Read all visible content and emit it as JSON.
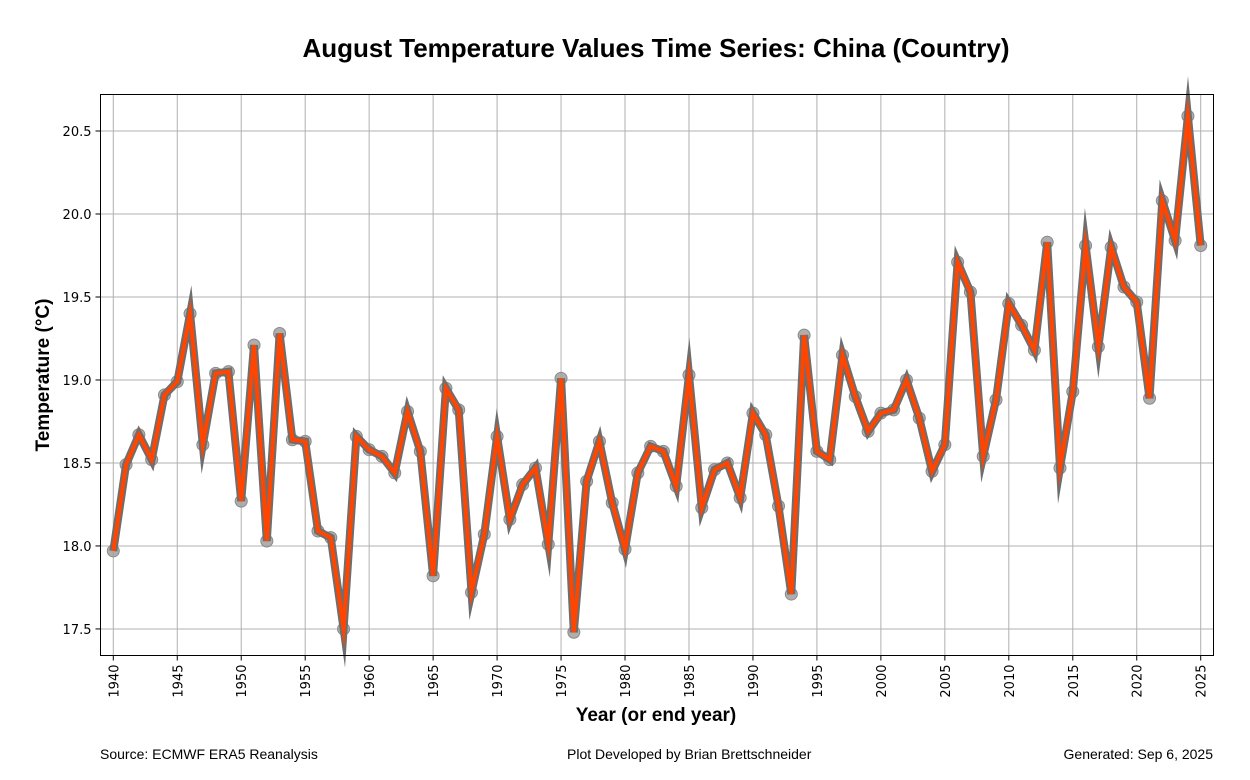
{
  "chart_data": {
    "type": "line",
    "title": "August Temperature Values Time Series: China (Country)",
    "xlabel": "Year (or end year)",
    "ylabel": "Temperature (°C)",
    "xlim": [
      1939,
      2026
    ],
    "ylim": [
      17.34,
      20.72
    ],
    "grid": true,
    "x_ticks": [
      1940,
      1945,
      1950,
      1955,
      1960,
      1965,
      1970,
      1975,
      1980,
      1985,
      1990,
      1995,
      2000,
      2005,
      2010,
      2015,
      2020,
      2025
    ],
    "y_ticks": [
      17.5,
      18.0,
      18.5,
      19.0,
      19.5,
      20.0,
      20.5
    ],
    "y_tick_labels": [
      "17.5",
      "18.0",
      "18.5",
      "19.0",
      "19.5",
      "20.0",
      "20.5"
    ],
    "series": [
      {
        "name": "August Temperature",
        "color": "#ff4500",
        "edge_color": "#6e6e6e",
        "marker_color": "#a0a0a0",
        "x": [
          1940,
          1941,
          1942,
          1943,
          1944,
          1945,
          1946,
          1947,
          1948,
          1949,
          1950,
          1951,
          1952,
          1953,
          1954,
          1955,
          1956,
          1957,
          1958,
          1959,
          1960,
          1961,
          1962,
          1963,
          1964,
          1965,
          1966,
          1967,
          1968,
          1969,
          1970,
          1971,
          1972,
          1973,
          1974,
          1975,
          1976,
          1977,
          1978,
          1979,
          1980,
          1981,
          1982,
          1983,
          1984,
          1985,
          1986,
          1987,
          1988,
          1989,
          1990,
          1991,
          1992,
          1993,
          1994,
          1995,
          1996,
          1997,
          1998,
          1999,
          2000,
          2001,
          2002,
          2003,
          2004,
          2005,
          2006,
          2007,
          2008,
          2009,
          2010,
          2011,
          2012,
          2013,
          2014,
          2015,
          2016,
          2017,
          2018,
          2019,
          2020,
          2021,
          2022,
          2023,
          2024,
          2025
        ],
        "values": [
          17.97,
          18.49,
          18.67,
          18.52,
          18.91,
          18.99,
          19.4,
          18.61,
          19.04,
          19.05,
          18.27,
          19.21,
          18.03,
          19.28,
          18.64,
          18.63,
          18.09,
          18.05,
          17.5,
          18.66,
          18.58,
          18.54,
          18.44,
          18.81,
          18.57,
          17.82,
          18.95,
          18.82,
          17.72,
          18.07,
          18.66,
          18.16,
          18.37,
          18.47,
          18.01,
          19.01,
          17.48,
          18.39,
          18.63,
          18.26,
          17.98,
          18.44,
          18.6,
          18.57,
          18.36,
          19.03,
          18.23,
          18.46,
          18.5,
          18.29,
          18.8,
          18.67,
          18.24,
          17.71,
          19.27,
          18.57,
          18.52,
          19.15,
          18.9,
          18.69,
          18.8,
          18.82,
          19.0,
          18.77,
          18.45,
          18.61,
          19.71,
          19.53,
          18.54,
          18.88,
          19.46,
          19.33,
          19.18,
          19.83,
          18.47,
          18.93,
          19.81,
          19.2,
          19.8,
          19.56,
          19.47,
          18.89,
          20.08,
          19.84,
          20.59,
          19.81
        ]
      }
    ],
    "legend": "none"
  },
  "footer": {
    "source": "Source: ECMWF ERA5 Reanalysis",
    "credit": "Plot Developed by Brian Brettschneider",
    "generated": "Generated: Sep 6, 2025"
  }
}
